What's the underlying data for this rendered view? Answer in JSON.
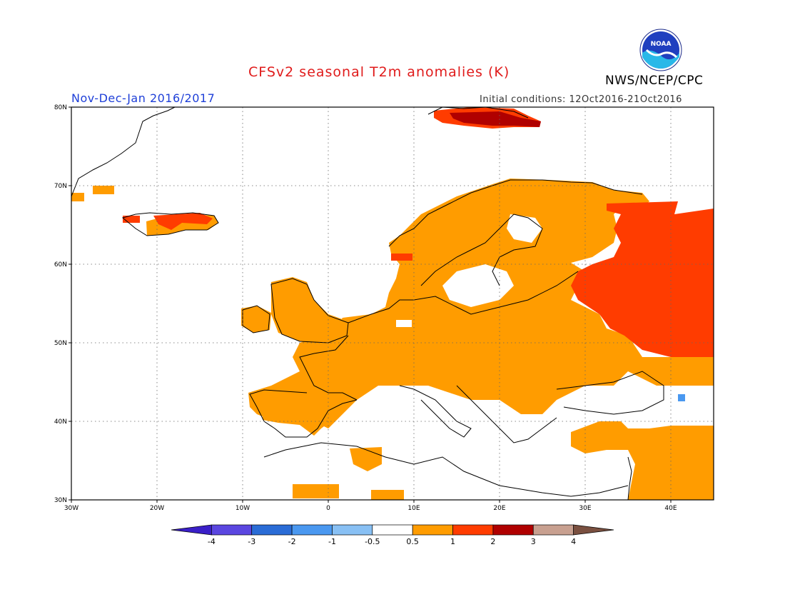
{
  "header": {
    "title": "CFSv2 seasonal T2m anomalies (K)",
    "period": "Nov-Dec-Jan 2016/2017",
    "initial_conditions": "Initial conditions: 12Oct2016-21Oct2016",
    "agency": "NWS/NCEP/CPC",
    "logo_text": "NOAA"
  },
  "map": {
    "region": "Europe",
    "lon_range": [
      -30,
      45
    ],
    "lat_range": [
      30,
      80
    ],
    "lon_labels": [
      "30W",
      "20W",
      "10W",
      "0",
      "10E",
      "20E",
      "30E",
      "40E"
    ],
    "lat_labels": [
      "80N",
      "70N",
      "60N",
      "50N",
      "40N",
      "30N"
    ],
    "grid": "dotted"
  },
  "colorbar": {
    "labels": [
      "-4",
      "-3",
      "-2",
      "-1",
      "-0.5",
      "0.5",
      "1",
      "2",
      "3",
      "4"
    ],
    "colors": [
      "#3a1fc8",
      "#5a46e0",
      "#2a6cd6",
      "#4a98f0",
      "#88c0f4",
      "#ffffff",
      "#ff9c00",
      "#ff3c00",
      "#b00000",
      "#c8a090",
      "#7a5040"
    ]
  },
  "anomaly_regions": [
    {
      "name": "iceland",
      "level": "1-2"
    },
    {
      "name": "scandinavia",
      "level": "0.5-1"
    },
    {
      "name": "central-europe",
      "level": "0.5-1"
    },
    {
      "name": "iberia",
      "level": "0.5-1"
    },
    {
      "name": "british-isles",
      "level": "0.5-1"
    },
    {
      "name": "eastern-europe-russia",
      "level": "1-2"
    },
    {
      "name": "svalbard",
      "level": "1-3"
    },
    {
      "name": "middle-east",
      "level": "0.5-1"
    },
    {
      "name": "mediterranean",
      "level": "-0.5-0.5"
    }
  ]
}
